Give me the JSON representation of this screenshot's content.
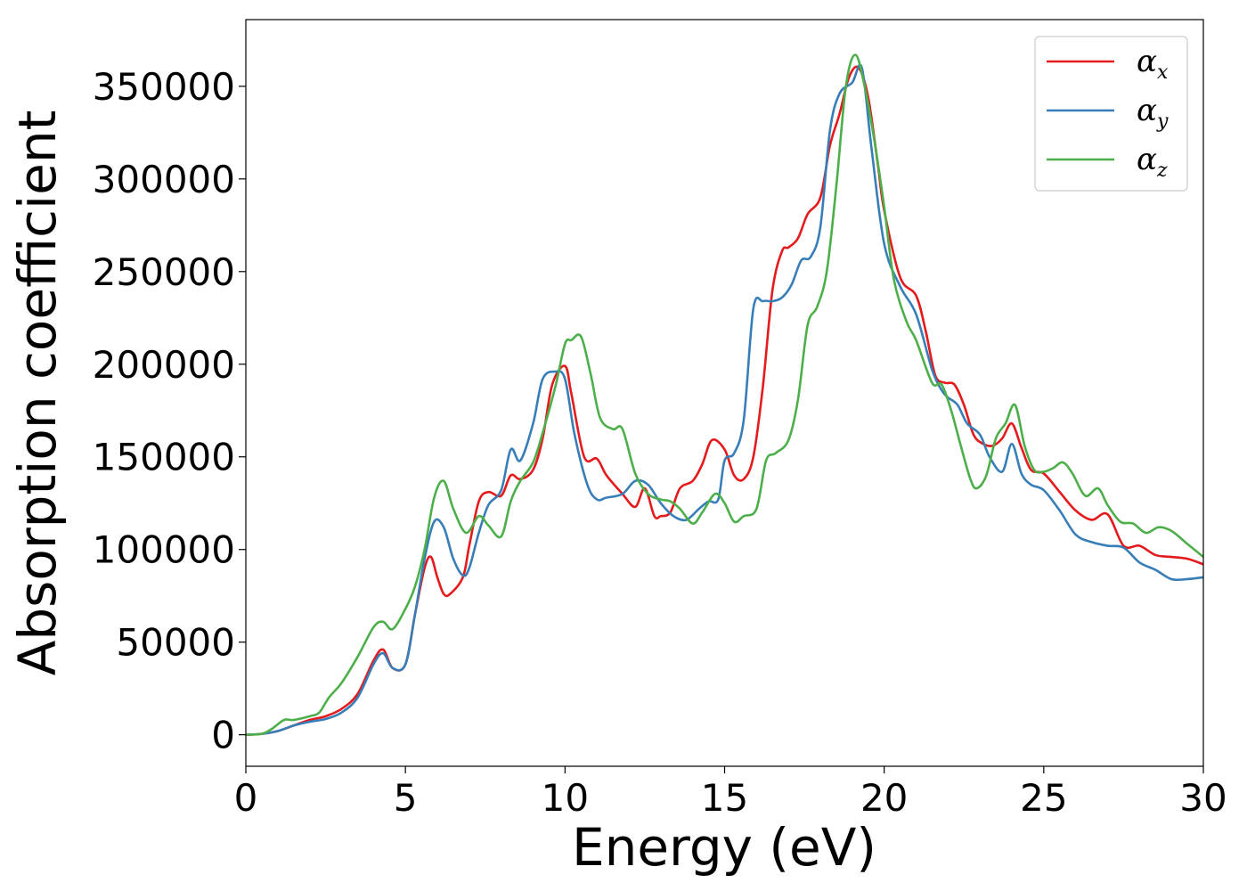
{
  "chart_data": {
    "type": "line",
    "xlabel": "Energy (eV)",
    "ylabel": "Absorption coefficient",
    "xlim": [
      0,
      30
    ],
    "ylim": [
      -17000,
      386000
    ],
    "xticks": [
      0,
      5,
      10,
      15,
      20,
      25,
      30
    ],
    "yticks": [
      0,
      50000,
      100000,
      150000,
      200000,
      250000,
      300000,
      350000
    ],
    "grid": false,
    "legend_position": "top-right",
    "series": [
      {
        "name": "α",
        "subscript": "x",
        "color": "#e41a1c",
        "x": [
          0,
          0.5,
          1,
          1.5,
          2,
          2.5,
          3,
          3.5,
          4,
          4.3,
          4.6,
          5,
          5.3,
          5.6,
          5.8,
          6,
          6.2,
          6.4,
          6.8,
          7,
          7.3,
          7.6,
          8,
          8.3,
          8.6,
          9,
          9.3,
          9.6,
          10,
          10.2,
          10.6,
          11,
          11.3,
          11.8,
          12.2,
          12.5,
          12.8,
          13,
          13.3,
          13.6,
          14,
          14.3,
          14.6,
          15,
          15.3,
          15.6,
          15.9,
          16.2,
          16.5,
          16.8,
          17,
          17.3,
          17.6,
          18,
          18.3,
          18.6,
          18.9,
          19.2,
          19.5,
          19.8,
          20,
          20.5,
          21,
          21.3,
          21.6,
          21.9,
          22.2,
          22.5,
          22.8,
          23.1,
          23.4,
          23.7,
          24,
          24.3,
          24.6,
          25,
          25.5,
          26,
          26.5,
          27,
          27.5,
          28,
          28.5,
          29,
          29.5,
          30
        ],
        "values": [
          0,
          500,
          2000,
          5000,
          8000,
          10000,
          14000,
          22000,
          40000,
          46000,
          36000,
          38000,
          65000,
          90000,
          96000,
          85000,
          76000,
          76000,
          85000,
          102000,
          126000,
          131000,
          129000,
          140000,
          138000,
          143000,
          160000,
          189000,
          199000,
          184000,
          150000,
          149000,
          140000,
          130000,
          123000,
          133000,
          118000,
          118000,
          120000,
          133000,
          137000,
          146000,
          159000,
          154000,
          140000,
          138000,
          150000,
          188000,
          240000,
          261000,
          263000,
          268000,
          281000,
          290000,
          318000,
          335000,
          355000,
          360000,
          344000,
          308000,
          283000,
          247000,
          237000,
          218000,
          194000,
          190000,
          189000,
          178000,
          162000,
          157000,
          156000,
          160000,
          168000,
          155000,
          143000,
          141000,
          131000,
          121000,
          116000,
          119000,
          102000,
          102000,
          97000,
          96000,
          95000,
          92000
        ]
      },
      {
        "name": "α",
        "subscript": "y",
        "color": "#377eb8",
        "x": [
          0,
          0.5,
          1,
          1.5,
          2,
          2.5,
          3,
          3.5,
          4,
          4.3,
          4.6,
          5,
          5.3,
          5.6,
          5.9,
          6.2,
          6.5,
          6.8,
          7,
          7.3,
          7.6,
          8,
          8.3,
          8.6,
          9,
          9.3,
          9.7,
          10,
          10.3,
          10.7,
          11,
          11.3,
          11.8,
          12.2,
          12.6,
          13,
          13.4,
          13.8,
          14.2,
          14.5,
          14.8,
          15,
          15.3,
          15.6,
          15.9,
          16.2,
          16.5,
          16.8,
          17.1,
          17.4,
          17.7,
          18,
          18.3,
          18.6,
          19,
          19.3,
          19.6,
          20,
          20.5,
          21,
          21.5,
          21.8,
          22,
          22.3,
          22.6,
          23,
          23.3,
          23.7,
          24,
          24.3,
          24.6,
          25,
          25.5,
          26,
          26.5,
          27,
          27.5,
          28,
          28.5,
          29,
          29.5,
          30
        ],
        "values": [
          0,
          500,
          2000,
          5000,
          7000,
          8500,
          12000,
          20000,
          38000,
          44000,
          36000,
          38000,
          65000,
          95000,
          115000,
          112000,
          95000,
          86000,
          90000,
          109000,
          124000,
          132000,
          154000,
          148000,
          168000,
          192000,
          196000,
          192000,
          162000,
          135000,
          127000,
          128000,
          130000,
          137000,
          135000,
          125000,
          118000,
          116000,
          122000,
          126000,
          127000,
          148000,
          152000,
          170000,
          230000,
          234000,
          234000,
          236000,
          243000,
          256000,
          258000,
          274000,
          326000,
          346000,
          352000,
          360000,
          317000,
          265000,
          242000,
          227000,
          197000,
          186000,
          182000,
          178000,
          168000,
          162000,
          150000,
          142000,
          157000,
          141000,
          135000,
          132000,
          121000,
          108000,
          104000,
          102000,
          101000,
          93000,
          89000,
          84000,
          84000,
          85000
        ]
      },
      {
        "name": "α",
        "subscript": "z",
        "color": "#4daf4a",
        "x": [
          0,
          0.5,
          0.8,
          1.2,
          1.5,
          2,
          2.3,
          2.6,
          3,
          3.5,
          4,
          4.3,
          4.6,
          5,
          5.3,
          5.6,
          5.9,
          6.2,
          6.5,
          6.9,
          7.3,
          7.6,
          8,
          8.3,
          8.6,
          9,
          9.3,
          9.7,
          10,
          10.2,
          10.5,
          10.8,
          11.1,
          11.5,
          11.8,
          12.2,
          12.6,
          13,
          13.3,
          13.6,
          14,
          14.3,
          14.7,
          15,
          15.3,
          15.6,
          16,
          16.3,
          16.6,
          17,
          17.3,
          17.6,
          17.9,
          18.2,
          18.5,
          18.8,
          19.1,
          19.4,
          19.7,
          20,
          20.3,
          20.7,
          21,
          21.5,
          21.8,
          22.1,
          22.4,
          22.7,
          22.9,
          23.2,
          23.5,
          23.8,
          24.1,
          24.4,
          24.7,
          25,
          25.3,
          25.6,
          25.9,
          26.3,
          26.7,
          27,
          27.4,
          27.8,
          28.2,
          28.6,
          29,
          29.5,
          30
        ],
        "values": [
          0,
          500,
          3000,
          8000,
          8000,
          10000,
          12000,
          20000,
          28000,
          42000,
          58000,
          61000,
          57000,
          68000,
          80000,
          100000,
          128000,
          137000,
          122000,
          109000,
          118000,
          113000,
          107000,
          126000,
          137000,
          147000,
          163000,
          188000,
          211000,
          213000,
          215000,
          195000,
          171000,
          165000,
          165000,
          141000,
          130000,
          127000,
          126000,
          122000,
          114000,
          120000,
          130000,
          125000,
          115000,
          118000,
          122000,
          148000,
          152000,
          159000,
          181000,
          221000,
          231000,
          250000,
          296000,
          350000,
          367000,
          349000,
          320000,
          285000,
          246000,
          223000,
          213000,
          190000,
          189000,
          175000,
          156000,
          138000,
          133000,
          140000,
          160000,
          168000,
          178000,
          156000,
          143000,
          142000,
          144000,
          147000,
          141000,
          129000,
          133000,
          124000,
          115000,
          114000,
          109000,
          112000,
          110000,
          103000,
          96000
        ]
      }
    ]
  }
}
